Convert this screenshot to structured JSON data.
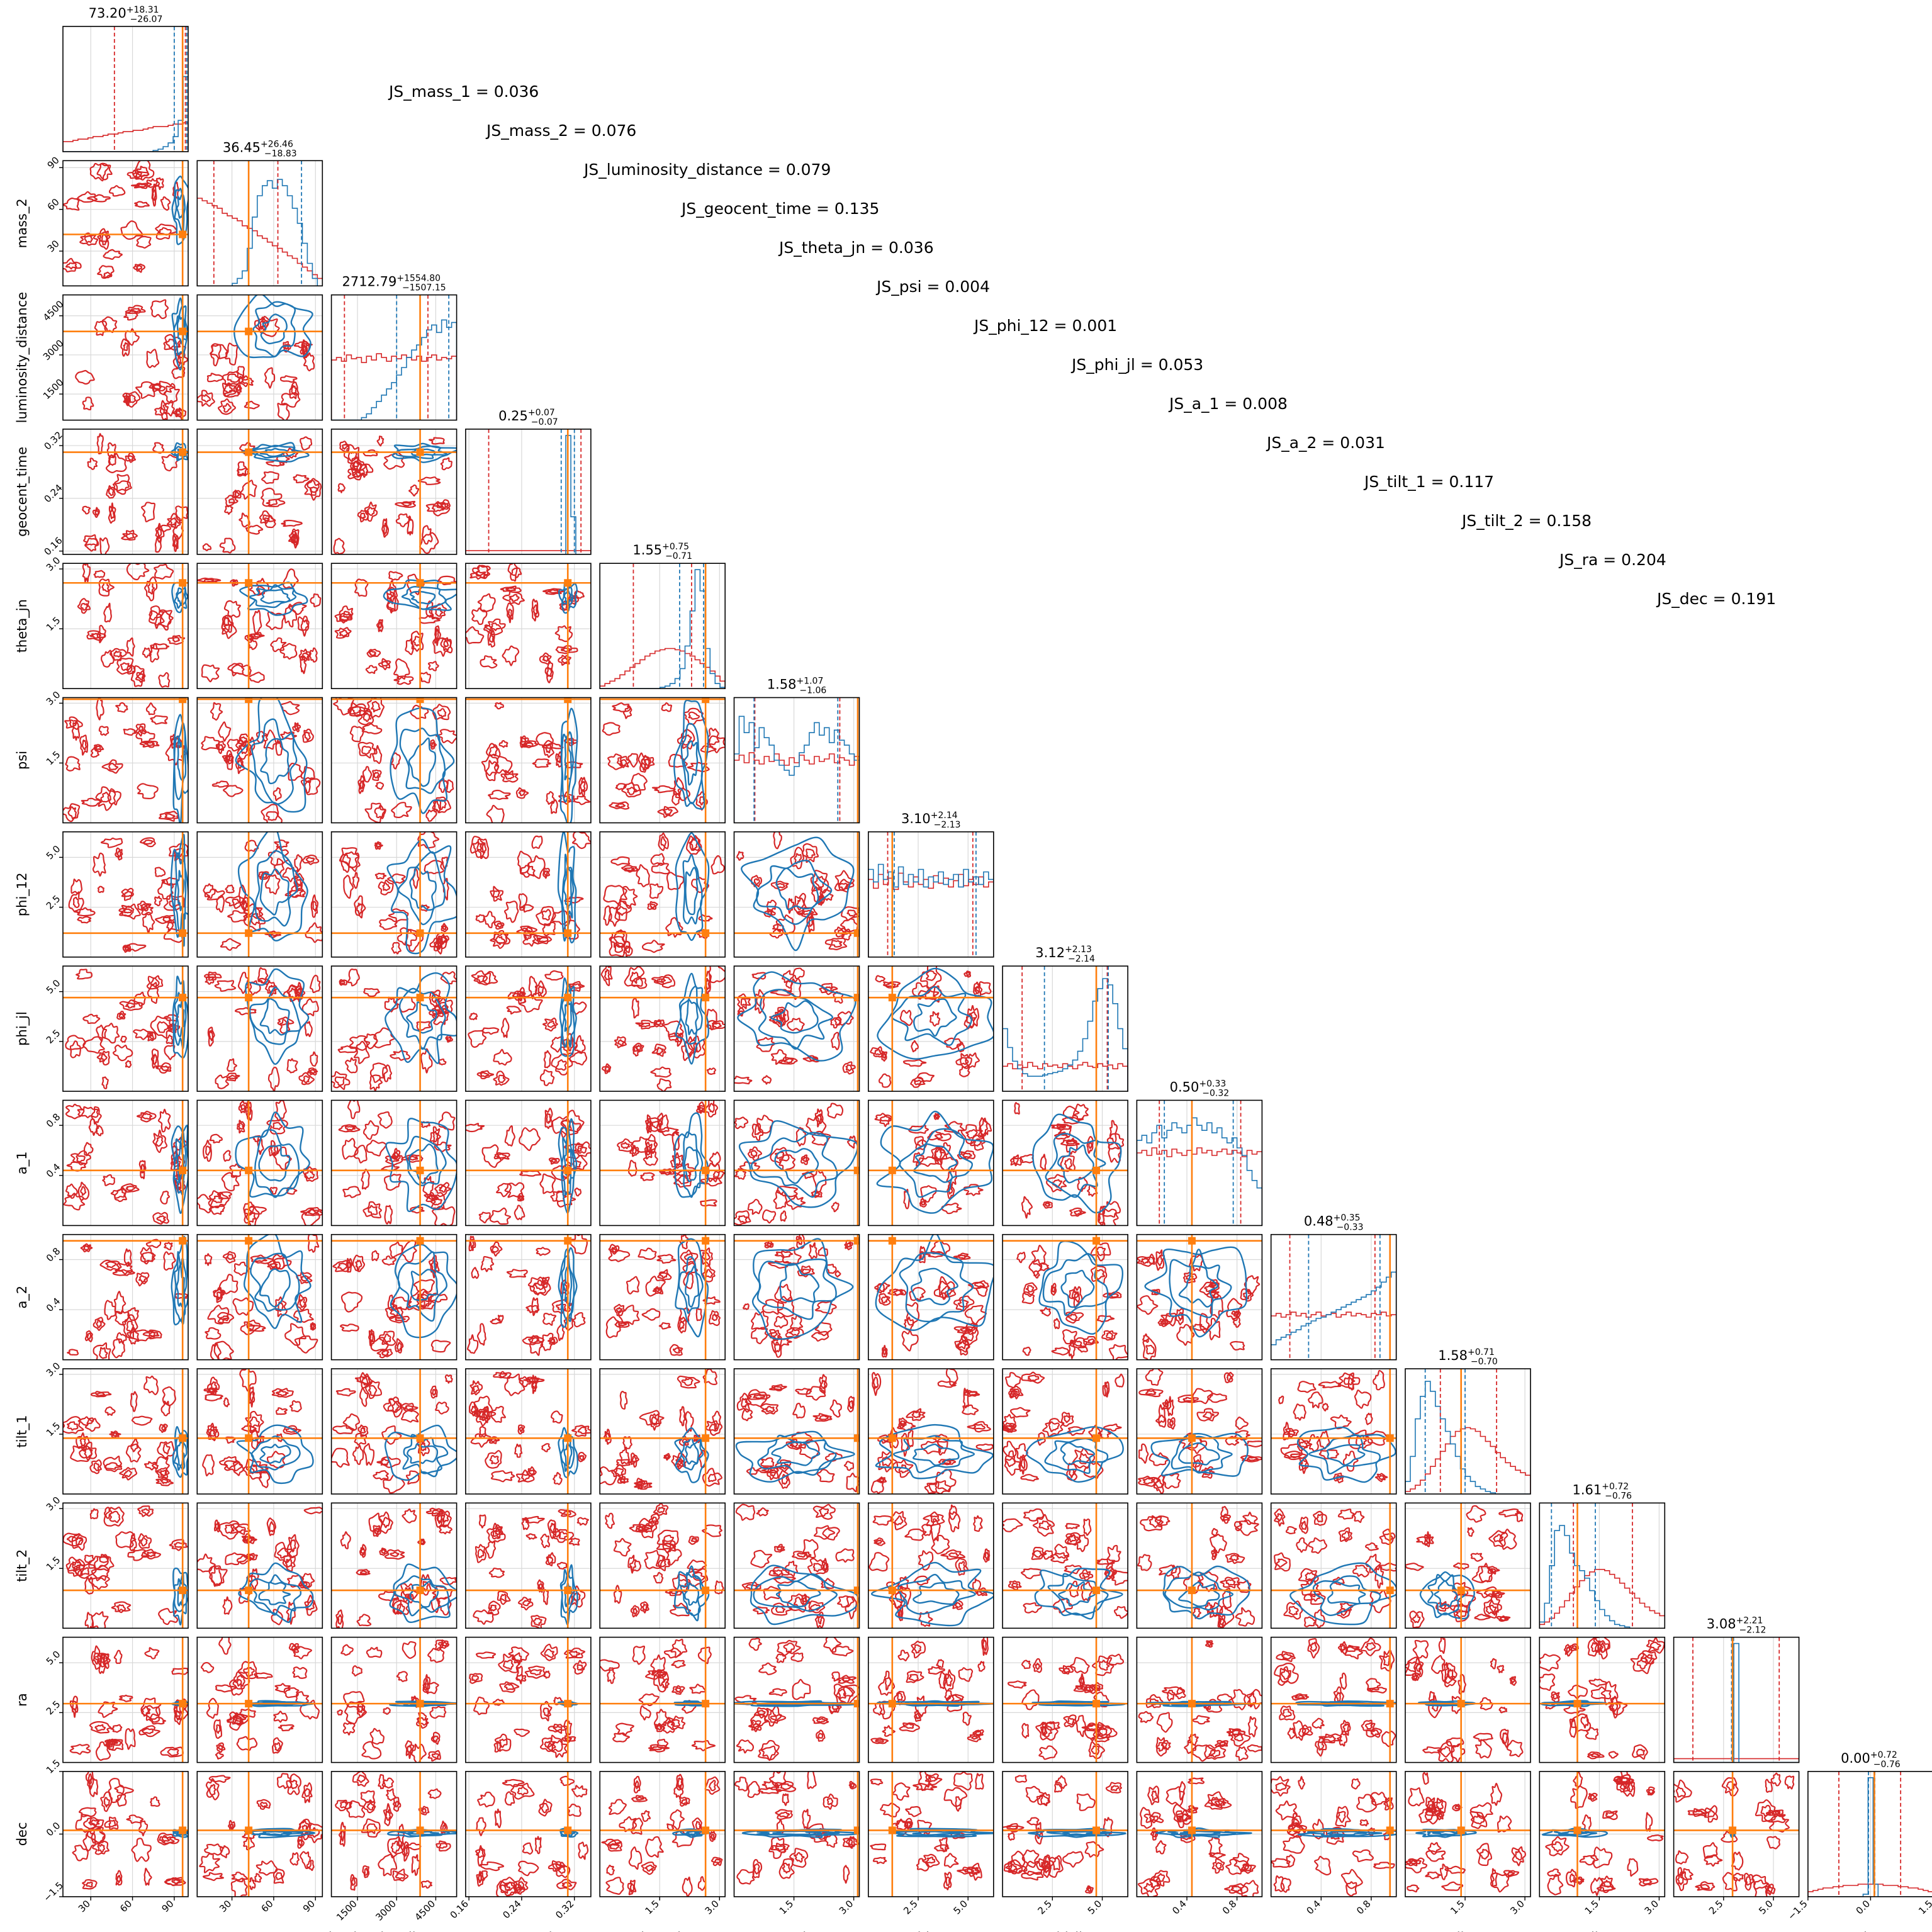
{
  "chart_data": {
    "type": "corner",
    "parameters": [
      "mass_1",
      "mass_2",
      "luminosity_distance",
      "geocent_time",
      "theta_jn",
      "psi",
      "phi_12",
      "phi_jl",
      "a_1",
      "a_2",
      "tilt_1",
      "tilt_2",
      "ra",
      "dec"
    ],
    "ranges": [
      [
        10,
        100
      ],
      [
        5,
        95
      ],
      [
        500,
        5300
      ],
      [
        0.155,
        0.345
      ],
      [
        0,
        3.14
      ],
      [
        0,
        3.14
      ],
      [
        0,
        6.28
      ],
      [
        0,
        6.28
      ],
      [
        0,
        1
      ],
      [
        0,
        1
      ],
      [
        0,
        3.14
      ],
      [
        0,
        3.14
      ],
      [
        0,
        6.28
      ],
      [
        -1.5,
        1.5
      ]
    ],
    "ticks": [
      {
        "values": [
          30,
          60,
          90
        ],
        "labels": [
          "30",
          "60",
          "90"
        ]
      },
      {
        "values": [
          30,
          60,
          90
        ],
        "labels": [
          "30",
          "60",
          "90"
        ]
      },
      {
        "values": [
          1500,
          3000,
          4500
        ],
        "labels": [
          "1500",
          "3000",
          "4500"
        ]
      },
      {
        "values": [
          0.16,
          0.24,
          0.32
        ],
        "labels": [
          "0.16",
          "0.24",
          "0.32"
        ]
      },
      {
        "values": [
          1.5,
          3.0
        ],
        "labels": [
          "1.5",
          "3.0"
        ]
      },
      {
        "values": [
          1.5,
          3.0
        ],
        "labels": [
          "1.5",
          "3.0"
        ]
      },
      {
        "values": [
          2.5,
          5.0
        ],
        "labels": [
          "2.5",
          "5.0"
        ]
      },
      {
        "values": [
          2.5,
          5.0
        ],
        "labels": [
          "2.5",
          "5.0"
        ]
      },
      {
        "values": [
          0.4,
          0.8
        ],
        "labels": [
          "0.4",
          "0.8"
        ]
      },
      {
        "values": [
          0.4,
          0.8
        ],
        "labels": [
          "0.4",
          "0.8"
        ]
      },
      {
        "values": [
          1.5,
          3.0
        ],
        "labels": [
          "1.5",
          "3.0"
        ]
      },
      {
        "values": [
          1.5,
          3.0
        ],
        "labels": [
          "1.5",
          "3.0"
        ]
      },
      {
        "values": [
          2.5,
          5.0
        ],
        "labels": [
          "2.5",
          "5.0"
        ]
      },
      {
        "values": [
          -1.5,
          0.0,
          1.5
        ],
        "labels": [
          "−1.5",
          "0.0",
          "1.5"
        ]
      }
    ],
    "titles": [
      {
        "median": "73.20",
        "plus": "+18.31",
        "minus": "−26.07"
      },
      {
        "median": "36.45",
        "plus": "+26.46",
        "minus": "−18.83"
      },
      {
        "median": "2712.79",
        "plus": "+1554.80",
        "minus": "−1507.15"
      },
      {
        "median": "0.25",
        "plus": "+0.07",
        "minus": "−0.07"
      },
      {
        "median": "1.55",
        "plus": "+0.75",
        "minus": "−0.71"
      },
      {
        "median": "1.58",
        "plus": "+1.07",
        "minus": "−1.06"
      },
      {
        "median": "3.10",
        "plus": "+2.14",
        "minus": "−2.13"
      },
      {
        "median": "3.12",
        "plus": "+2.13",
        "minus": "−2.14"
      },
      {
        "median": "0.50",
        "plus": "+0.33",
        "minus": "−0.32"
      },
      {
        "median": "0.48",
        "plus": "+0.35",
        "minus": "−0.33"
      },
      {
        "median": "1.58",
        "plus": "+0.71",
        "minus": "−0.70"
      },
      {
        "median": "1.61",
        "plus": "+0.72",
        "minus": "−0.76"
      },
      {
        "median": "3.08",
        "plus": "+2.21",
        "minus": "−2.12"
      },
      {
        "median": "0.00",
        "plus": "+0.72",
        "minus": "−0.76"
      }
    ],
    "js_labels": [
      "JS_mass_1 = 0.036",
      "JS_mass_2 = 0.076",
      "JS_luminosity_distance = 0.079",
      "JS_geocent_time = 0.135",
      "JS_theta_jn = 0.036",
      "JS_psi = 0.004",
      "JS_phi_12 = 0.001",
      "JS_phi_jl = 0.053",
      "JS_a_1 = 0.008",
      "JS_a_2 = 0.031",
      "JS_tilt_1 = 0.117",
      "JS_tilt_2 = 0.158",
      "JS_ra = 0.204",
      "JS_dec = 0.191"
    ],
    "injection": [
      96,
      42,
      3900,
      0.31,
      2.65,
      3.1,
      1.2,
      4.7,
      0.44,
      0.95,
      1.4,
      0.95,
      2.95,
      0.09
    ],
    "red_quantiles": [
      [
        47,
        98
      ],
      [
        17,
        63
      ],
      [
        1000,
        4200
      ],
      [
        0.19,
        0.33
      ],
      [
        0.84,
        2.3
      ],
      [
        0.52,
        2.65
      ],
      [
        0.97,
        5.24
      ],
      [
        0.98,
        5.25
      ],
      [
        0.18,
        0.83
      ],
      [
        0.15,
        0.83
      ],
      [
        0.88,
        2.29
      ],
      [
        0.85,
        2.33
      ],
      [
        0.96,
        5.29
      ],
      [
        -0.76,
        0.72
      ]
    ],
    "blue_quantiles": [
      [
        90,
        99
      ],
      [
        42,
        80
      ],
      [
        3000,
        5000
      ],
      [
        0.3,
        0.32
      ],
      [
        2.0,
        2.6
      ],
      [
        0.5,
        2.6
      ],
      [
        1.3,
        5.4
      ],
      [
        2.1,
        5.3
      ],
      [
        0.22,
        0.77
      ],
      [
        0.3,
        0.87
      ],
      [
        0.5,
        1.5
      ],
      [
        0.3,
        1.4
      ],
      [
        2.9,
        3.0
      ],
      [
        -0.05,
        0.1
      ]
    ],
    "red_hist": [
      [
        0.08,
        0.08,
        0.09,
        0.1,
        0.1,
        0.11,
        0.12,
        0.12,
        0.13,
        0.14,
        0.14,
        0.15,
        0.16,
        0.16,
        0.17,
        0.17,
        0.18,
        0.19,
        0.2,
        0.2,
        0.2,
        0.21,
        0.22,
        0.22,
        0.23
      ],
      [
        0.7,
        0.68,
        0.66,
        0.64,
        0.62,
        0.58,
        0.56,
        0.54,
        0.52,
        0.48,
        0.46,
        0.44,
        0.4,
        0.38,
        0.35,
        0.32,
        0.3,
        0.27,
        0.24,
        0.22,
        0.18,
        0.15,
        0.12,
        0.09,
        0.06
      ],
      [
        0.48,
        0.5,
        0.47,
        0.52,
        0.49,
        0.5,
        0.46,
        0.51,
        0.48,
        0.53,
        0.5,
        0.47,
        0.51,
        0.49,
        0.52,
        0.5,
        0.48,
        0.51,
        0.47,
        0.5,
        0.52,
        0.48,
        0.5,
        0.49,
        0.51
      ],
      [
        0.03,
        0.03,
        0.03,
        0.03,
        0.03,
        0.03,
        0.03,
        0.03,
        0.03,
        0.03,
        0.03,
        0.03,
        0.03,
        0.03,
        0.03,
        0.03,
        0.03,
        0.03,
        0.03,
        0.03,
        0.03,
        0.03,
        0.03,
        0.03,
        0.03
      ],
      [
        0.02,
        0.04,
        0.06,
        0.08,
        0.11,
        0.14,
        0.17,
        0.2,
        0.23,
        0.26,
        0.28,
        0.3,
        0.31,
        0.32,
        0.32,
        0.31,
        0.3,
        0.28,
        0.26,
        0.23,
        0.2,
        0.17,
        0.14,
        0.1,
        0.06
      ],
      [
        0.5,
        0.54,
        0.48,
        0.56,
        0.5,
        0.47,
        0.53,
        0.49,
        0.55,
        0.5,
        0.46,
        0.52,
        0.48,
        0.54,
        0.5,
        0.47,
        0.53,
        0.49,
        0.51,
        0.55,
        0.48,
        0.52,
        0.5,
        0.46,
        0.53
      ],
      [
        0.62,
        0.55,
        0.66,
        0.58,
        0.63,
        0.54,
        0.67,
        0.6,
        0.56,
        0.64,
        0.58,
        0.62,
        0.55,
        0.65,
        0.59,
        0.63,
        0.56,
        0.61,
        0.66,
        0.57,
        0.62,
        0.58,
        0.64,
        0.56,
        0.6
      ],
      [
        0.2,
        0.22,
        0.18,
        0.21,
        0.19,
        0.23,
        0.2,
        0.18,
        0.22,
        0.2,
        0.21,
        0.19,
        0.22,
        0.2,
        0.18,
        0.21,
        0.23,
        0.2,
        0.19,
        0.22,
        0.2,
        0.21,
        0.18,
        0.22,
        0.2
      ],
      [
        0.58,
        0.6,
        0.56,
        0.62,
        0.57,
        0.6,
        0.55,
        0.61,
        0.58,
        0.56,
        0.6,
        0.57,
        0.62,
        0.58,
        0.6,
        0.56,
        0.59,
        0.61,
        0.57,
        0.6,
        0.58,
        0.55,
        0.6,
        0.57,
        0.59
      ],
      [
        0.35,
        0.37,
        0.34,
        0.36,
        0.38,
        0.35,
        0.37,
        0.34,
        0.36,
        0.38,
        0.35,
        0.36,
        0.37,
        0.34,
        0.36,
        0.38,
        0.35,
        0.37,
        0.36,
        0.34,
        0.37,
        0.36,
        0.38,
        0.35,
        0.36
      ],
      [
        0.02,
        0.04,
        0.07,
        0.11,
        0.16,
        0.22,
        0.28,
        0.34,
        0.4,
        0.46,
        0.5,
        0.52,
        0.53,
        0.52,
        0.5,
        0.46,
        0.42,
        0.38,
        0.33,
        0.29,
        0.25,
        0.22,
        0.19,
        0.17,
        0.15
      ],
      [
        0.03,
        0.05,
        0.08,
        0.12,
        0.17,
        0.22,
        0.28,
        0.33,
        0.38,
        0.42,
        0.45,
        0.47,
        0.47,
        0.46,
        0.43,
        0.4,
        0.36,
        0.32,
        0.28,
        0.24,
        0.2,
        0.17,
        0.14,
        0.12,
        0.1
      ],
      [
        0.03,
        0.03,
        0.03,
        0.03,
        0.03,
        0.03,
        0.03,
        0.03,
        0.03,
        0.03,
        0.03,
        0.03,
        0.03,
        0.03,
        0.03,
        0.03,
        0.03,
        0.03,
        0.03,
        0.03,
        0.03,
        0.03,
        0.03,
        0.03,
        0.03
      ],
      [
        0.04,
        0.05,
        0.06,
        0.07,
        0.07,
        0.08,
        0.08,
        0.09,
        0.09,
        0.09,
        0.1,
        0.1,
        0.1,
        0.1,
        0.1,
        0.09,
        0.09,
        0.09,
        0.08,
        0.08,
        0.07,
        0.07,
        0.06,
        0.05,
        0.04
      ]
    ],
    "blue_hist": [
      [
        0.0,
        0.0,
        0.0,
        0.0,
        0.0,
        0.0,
        0.0,
        0.0,
        0.0,
        0.0,
        0.0,
        0.0,
        0.0,
        0.0,
        0.0,
        0.0,
        0.0,
        0.0,
        0.01,
        0.02,
        0.04,
        0.07,
        0.12,
        0.25,
        0.6
      ],
      [
        0.0,
        0.0,
        0.0,
        0.0,
        0.0,
        0.0,
        0.0,
        0.02,
        0.06,
        0.12,
        0.3,
        0.55,
        0.72,
        0.8,
        0.84,
        0.78,
        0.85,
        0.8,
        0.72,
        0.62,
        0.5,
        0.34,
        0.18,
        0.06,
        0.0
      ],
      [
        0.0,
        0.0,
        0.0,
        0.0,
        0.0,
        0.0,
        0.02,
        0.05,
        0.1,
        0.15,
        0.2,
        0.25,
        0.3,
        0.36,
        0.42,
        0.5,
        0.56,
        0.6,
        0.66,
        0.72,
        0.76,
        0.7,
        0.8,
        0.74,
        0.78
      ],
      [
        0.0,
        0.0,
        0.0,
        0.0,
        0.0,
        0.0,
        0.0,
        0.0,
        0.0,
        0.0,
        0.0,
        0.0,
        0.0,
        0.0,
        0.0,
        0.0,
        0.0,
        0.0,
        0.0,
        0.0,
        0.95,
        0.3,
        0.0,
        0.0,
        0.0
      ],
      [
        0.0,
        0.0,
        0.0,
        0.0,
        0.0,
        0.0,
        0.0,
        0.0,
        0.0,
        0.0,
        0.0,
        0.0,
        0.01,
        0.02,
        0.04,
        0.08,
        0.16,
        0.34,
        0.62,
        0.95,
        0.78,
        0.32,
        0.12,
        0.04,
        0.01
      ],
      [
        0.55,
        0.85,
        0.72,
        0.8,
        0.6,
        0.76,
        0.68,
        0.62,
        0.5,
        0.46,
        0.42,
        0.38,
        0.45,
        0.56,
        0.62,
        0.72,
        0.8,
        0.7,
        0.76,
        0.64,
        0.74,
        0.66,
        0.62,
        0.55,
        0.5
      ],
      [
        0.7,
        0.6,
        0.74,
        0.62,
        0.68,
        0.56,
        0.72,
        0.58,
        0.66,
        0.6,
        0.7,
        0.56,
        0.64,
        0.6,
        0.68,
        0.58,
        0.62,
        0.66,
        0.56,
        0.7,
        0.6,
        0.64,
        0.58,
        0.68,
        0.62
      ],
      [
        0.5,
        0.35,
        0.24,
        0.18,
        0.14,
        0.12,
        0.12,
        0.12,
        0.13,
        0.14,
        0.15,
        0.16,
        0.18,
        0.21,
        0.25,
        0.32,
        0.42,
        0.56,
        0.72,
        0.82,
        0.9,
        0.85,
        0.7,
        0.5,
        0.34
      ],
      [
        0.68,
        0.72,
        0.66,
        0.74,
        0.8,
        0.7,
        0.76,
        0.82,
        0.78,
        0.74,
        0.8,
        0.86,
        0.8,
        0.76,
        0.82,
        0.74,
        0.78,
        0.7,
        0.66,
        0.7,
        0.62,
        0.56,
        0.44,
        0.36,
        0.3
      ],
      [
        0.12,
        0.16,
        0.18,
        0.2,
        0.22,
        0.24,
        0.27,
        0.29,
        0.31,
        0.33,
        0.34,
        0.36,
        0.38,
        0.4,
        0.42,
        0.44,
        0.46,
        0.48,
        0.5,
        0.52,
        0.55,
        0.58,
        0.62,
        0.66,
        0.7
      ],
      [
        0.1,
        0.3,
        0.6,
        0.78,
        0.9,
        0.82,
        0.7,
        0.6,
        0.5,
        0.4,
        0.3,
        0.2,
        0.14,
        0.1,
        0.06,
        0.04,
        0.02,
        0.01,
        0.0,
        0.0,
        0.0,
        0.0,
        0.0,
        0.0,
        0.0
      ],
      [
        0.05,
        0.2,
        0.5,
        0.78,
        0.82,
        0.74,
        0.6,
        0.5,
        0.46,
        0.4,
        0.3,
        0.22,
        0.15,
        0.1,
        0.06,
        0.03,
        0.02,
        0.01,
        0.0,
        0.0,
        0.0,
        0.0,
        0.0,
        0.0,
        0.0
      ],
      [
        0.0,
        0.0,
        0.0,
        0.0,
        0.0,
        0.0,
        0.0,
        0.0,
        0.0,
        0.0,
        0.0,
        0.0,
        0.95,
        0.0,
        0.0,
        0.0,
        0.0,
        0.0,
        0.0,
        0.0,
        0.0,
        0.0,
        0.0,
        0.0,
        0.0
      ],
      [
        0.0,
        0.0,
        0.0,
        0.0,
        0.0,
        0.0,
        0.0,
        0.0,
        0.0,
        0.0,
        0.0,
        0.02,
        0.95,
        0.1,
        0.0,
        0.0,
        0.0,
        0.0,
        0.0,
        0.0,
        0.0,
        0.0,
        0.0,
        0.0,
        0.0
      ]
    ],
    "colors": {
      "red": "#d62728",
      "blue": "#1f77b4",
      "truth": "#ff7f0e",
      "grid": "#d8d8d8"
    }
  }
}
